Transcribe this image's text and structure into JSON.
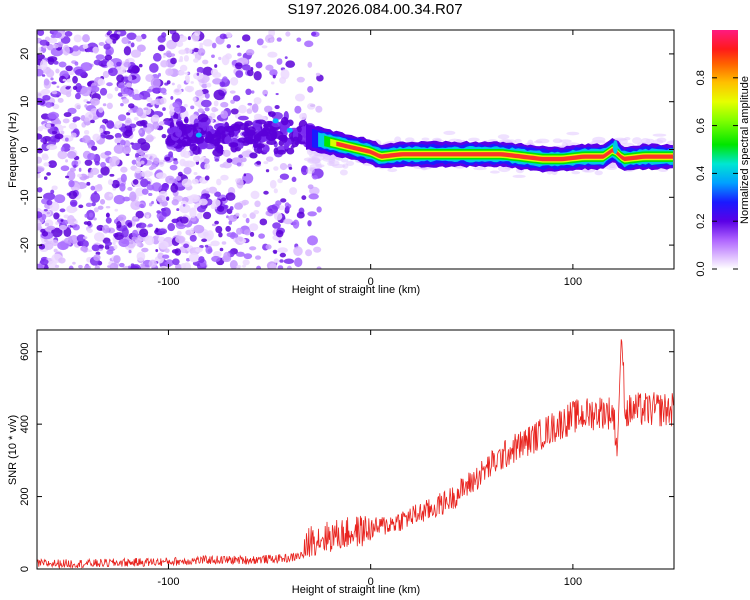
{
  "title": "S197.2026.084.00.34.R07",
  "colors": {
    "snr_line": "#e8231e",
    "spectral_low": "#d9b3ff",
    "spectral_mid": "#6a00e0",
    "ridge": "#ff2a2a"
  },
  "chart_data": [
    {
      "type": "heatmap",
      "title": "S197.2026.084.00.34.R07",
      "xlabel": "Height of straight line (km)",
      "ylabel": "Frequency (Hz)",
      "xlim": [
        -165,
        150
      ],
      "ylim": [
        -25,
        25
      ],
      "x_ticks": [
        -100,
        0,
        100
      ],
      "y_ticks": [
        -20,
        -10,
        0,
        10,
        20
      ],
      "ridge": {
        "x": [
          -35,
          -25,
          -15,
          -5,
          0,
          5,
          15,
          25,
          35,
          45,
          55,
          65,
          75,
          85,
          95,
          105,
          115,
          120,
          125,
          135,
          150
        ],
        "y": [
          3,
          2,
          1,
          0,
          -0.5,
          -1.5,
          -1,
          -1,
          -1,
          -1,
          -1,
          -1,
          -1.5,
          -2,
          -2,
          -1.5,
          -1.5,
          0,
          -2,
          -1.5,
          -1.5
        ]
      },
      "colorbar": {
        "label": "Normalized spectral amplitude",
        "range": [
          0,
          1
        ],
        "ticks": [
          0.0,
          0.2,
          0.4,
          0.6,
          0.8
        ],
        "tick_labels": [
          "0.0",
          "0.2",
          "0.4",
          "0.6",
          "0.8"
        ]
      }
    },
    {
      "type": "line",
      "xlabel": "Height of straight line (km)",
      "ylabel": "SNR (10 * v/v)",
      "xlim": [
        -165,
        150
      ],
      "ylim": [
        0,
        660
      ],
      "x_ticks": [
        -100,
        0,
        100
      ],
      "y_ticks": [
        0,
        200,
        400,
        600
      ],
      "series": [
        {
          "x": [
            -165,
            -140,
            -120,
            -100,
            -80,
            -60,
            -40,
            -33,
            -30,
            -20,
            -10,
            0,
            10,
            20,
            30,
            40,
            50,
            60,
            70,
            80,
            90,
            100,
            110,
            115,
            120,
            122,
            124,
            126,
            130,
            140,
            150
          ],
          "y": [
            15,
            15,
            18,
            20,
            25,
            25,
            30,
            40,
            80,
            90,
            100,
            110,
            125,
            145,
            165,
            195,
            240,
            290,
            330,
            360,
            390,
            420,
            430,
            435,
            430,
            330,
            650,
            430,
            440,
            440,
            440
          ]
        }
      ]
    }
  ]
}
